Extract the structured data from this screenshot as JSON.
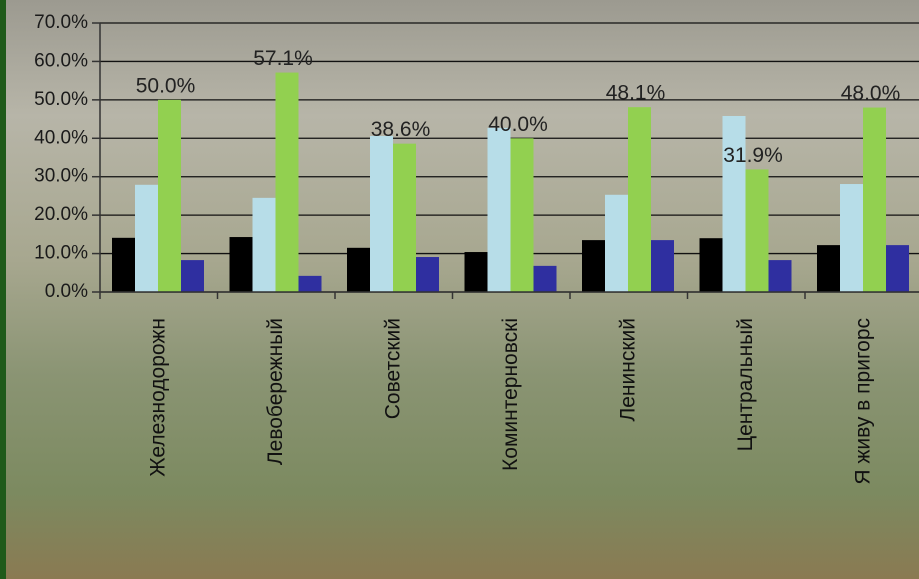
{
  "chart_data": {
    "type": "bar",
    "categories": [
      "Железнодорожн",
      "Левобережный",
      "Советский",
      "Коминтерновскі",
      "Ленинский",
      "Центральный",
      "Я живу в пригорс"
    ],
    "series": [
      {
        "color": "#000000",
        "values": [
          14.1,
          14.3,
          11.5,
          10.4,
          13.5,
          14.0,
          12.2
        ]
      },
      {
        "color": "#b7dde8",
        "values": [
          27.9,
          24.5,
          40.6,
          42.7,
          25.3,
          45.8,
          28.1
        ]
      },
      {
        "color": "#92d050",
        "values": [
          50.0,
          57.1,
          38.6,
          40.0,
          48.1,
          31.9,
          48.0
        ],
        "value_labels": [
          "50.0%",
          "57.1%",
          "38.6%",
          "40.0%",
          "48.1%",
          "31.9%",
          "48.0%"
        ]
      },
      {
        "color": "#2f2fa0",
        "values": [
          8.3,
          4.2,
          9.1,
          6.8,
          13.5,
          8.3,
          12.2
        ]
      }
    ],
    "ylim": [
      0,
      70
    ],
    "yticks": [
      {
        "value": 0,
        "label": "0.0%"
      },
      {
        "value": 10,
        "label": "10.0%"
      },
      {
        "value": 20,
        "label": "20.0%"
      },
      {
        "value": 30,
        "label": "30.0%"
      },
      {
        "value": 40,
        "label": "40.0%"
      },
      {
        "value": 50,
        "label": "50.0%"
      },
      {
        "value": 60,
        "label": "60.0%"
      },
      {
        "value": 70,
        "label": "70.0%"
      }
    ],
    "grid": true
  }
}
